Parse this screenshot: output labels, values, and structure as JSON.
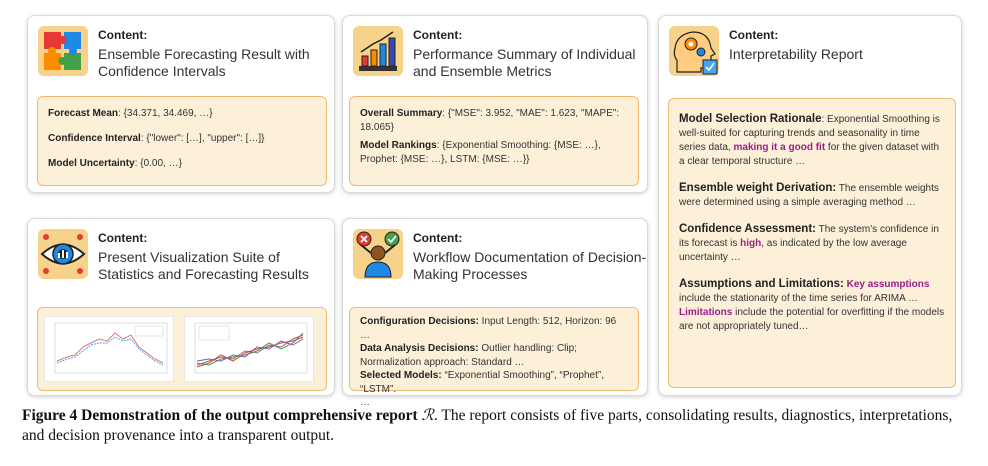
{
  "content_label": "Content:",
  "cards": {
    "forecast": {
      "title": "Ensemble Forecasting Result with Confidence Intervals",
      "icon": "puzzle-icon",
      "rows": [
        {
          "key": "Forecast Mean",
          "value": " {34.371, 34.469, …}"
        },
        {
          "key": "Confidence Interval",
          "value": "  {\"lower\": […], \"upper\": […]}"
        },
        {
          "key": "Model Uncertainty",
          "value": " {0.00, …}"
        }
      ]
    },
    "performance": {
      "title": "Performance Summary of Individual and Ensemble Metrics",
      "icon": "bar-chart-icon",
      "overall_key": "Overall Summary",
      "overall_value": " {\"MSE\": 3.952, \"MAE\": 1.623, \"MAPE\": 18.065}",
      "rank_key": "Model Rankings",
      "rank_value": " {Exponential Smoothing: {MSE: …}, Prophet: {MSE: …}, LSTM: {MSE: …}}"
    },
    "visualization": {
      "title": "Present Visualization Suite of Statistics and Forecasting Results",
      "icon": "eye-chart-icon"
    },
    "workflow": {
      "title": "Workflow Documentation of Decision-Making Processes",
      "icon": "decision-person-icon",
      "config_key": "Configuration Decisions:",
      "config_value": " Input Length: 512, Horizon: 96 …",
      "data_key": "Data Analysis Decisions:",
      "data_value": " Outlier handling: Clip; Normalization approach: Standard …",
      "models_key": "Selected Models:",
      "models_value": " “Exponential Smoothing”, “Prophet”, “LSTM”.",
      "ellipsis": "…"
    },
    "interpret": {
      "title": "Interpretability Report",
      "icon": "head-gears-icon",
      "s1_title": "Model Selection Rationale",
      "s1_a": ": Exponential Smoothing is well-suited for capturing trends and seasonality in time series data, ",
      "s1_hl": "making it a good fit",
      "s1_b": " for the given dataset with a clear temporal structure …",
      "s2_title": "Ensemble weight Derivation:",
      "s2_a": " The ensemble weights were determined using a simple averaging method …",
      "s3_title": "Confidence Assessment:",
      "s3_a": " The system's confidence in its forecast is ",
      "s3_hl": "high",
      "s3_b": ", as indicated by the low average uncertainty …",
      "s4_title": "Assumptions and Limitations:",
      "s4_hl1": "Key assumptions",
      "s4_a": " include the stationarity of the time series for ARIMA … ",
      "s4_hl2": "Limitations",
      "s4_b": " include the potential for overfitting if the models are not appropriately tuned…"
    }
  },
  "caption": {
    "fig_label": "Figure 4  Demonstration of the output comprehensive report ",
    "symbol": "ℛ",
    "text": ". The report consists of five parts, consolidating results, diagnostics, interpretations, and decision provenance into a transparent output."
  },
  "colors": {
    "box_fill": "#fdf0d9",
    "box_border": "#f0b870",
    "highlight": "#9b1d8c"
  }
}
